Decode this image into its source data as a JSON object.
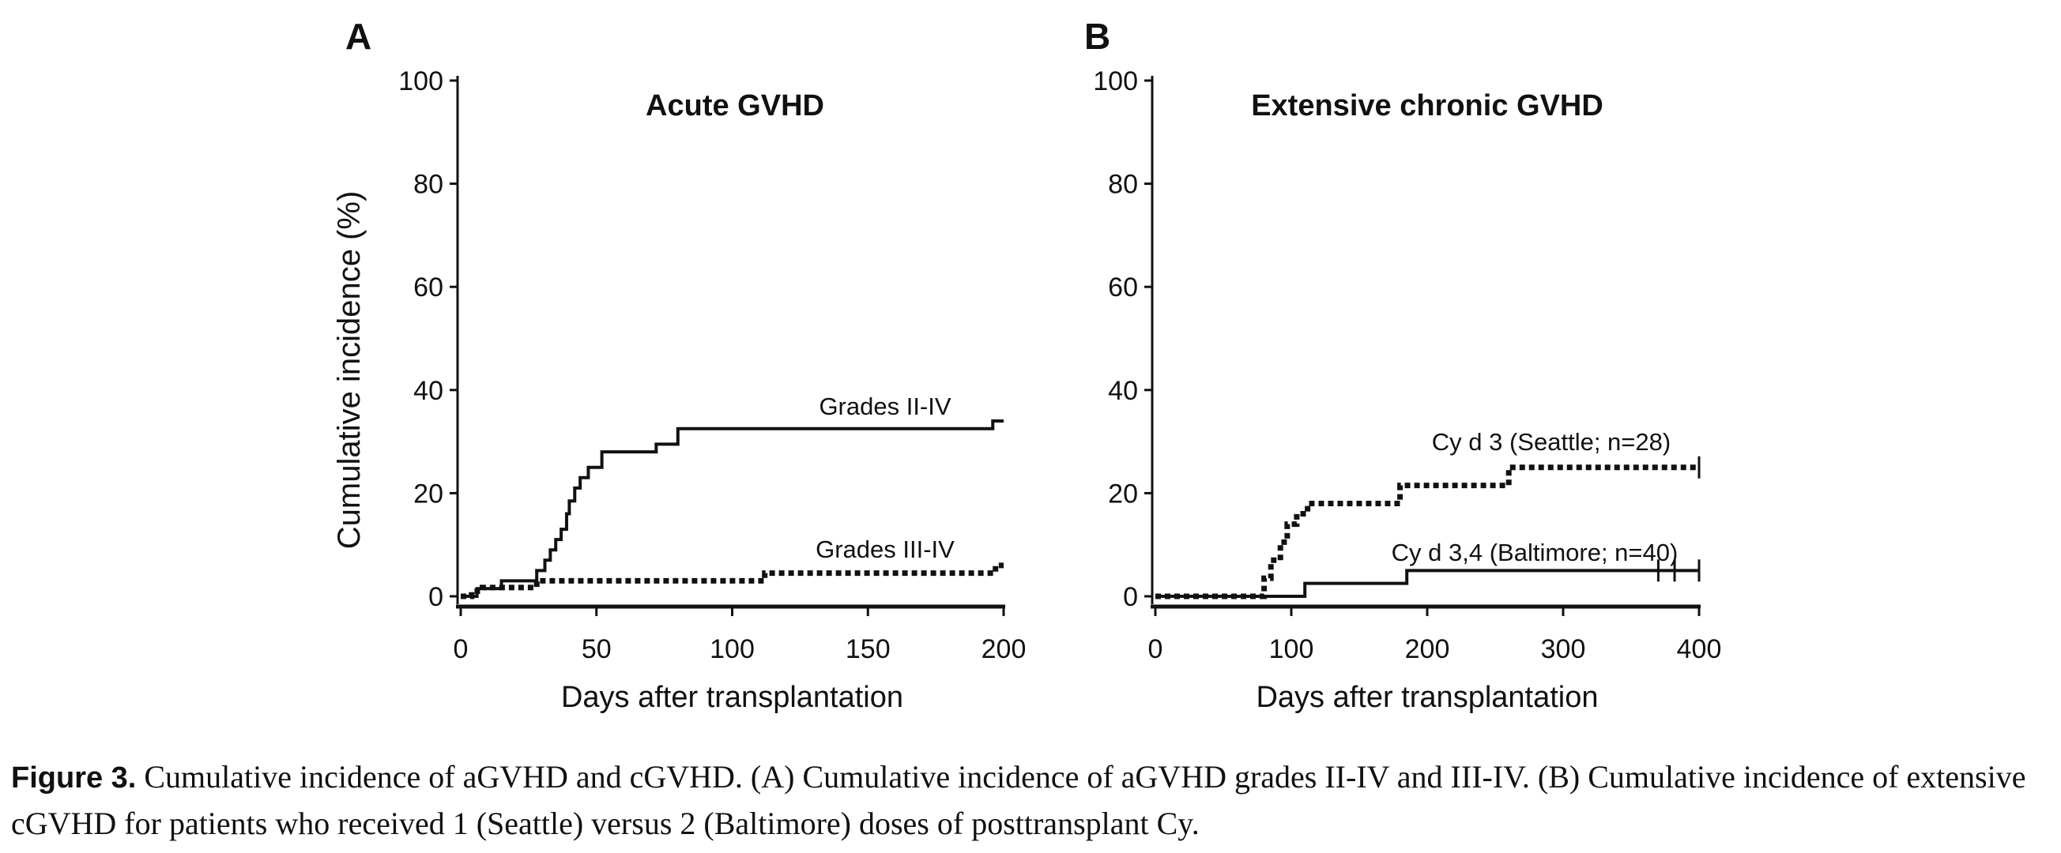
{
  "chart_data": [
    {
      "type": "line",
      "panel_label": "A",
      "title": "Acute GVHD",
      "xlabel": "Days after transplantation",
      "ylabel": "Cumulative incidence (%)",
      "xlim": [
        0,
        200
      ],
      "ylim": [
        0,
        100
      ],
      "x_ticks": [
        "0",
        "50",
        "100",
        "150",
        "200"
      ],
      "y_ticks": [
        "0",
        "20",
        "40",
        "60",
        "80",
        "100"
      ],
      "step": true,
      "series": [
        {
          "name": "Grades II-IV",
          "style": "solid",
          "x": [
            0,
            6,
            15,
            28,
            31,
            33,
            35,
            37,
            39,
            40,
            42,
            44,
            47,
            52,
            55,
            72,
            80,
            196,
            200
          ],
          "y": [
            0,
            1.5,
            3,
            5,
            7,
            9,
            11,
            13,
            16,
            18.5,
            21,
            23,
            25,
            28,
            28,
            29.5,
            32.5,
            34,
            34
          ]
        },
        {
          "name": "Grades III-IV",
          "style": "dotted",
          "x": [
            0,
            4,
            8,
            28,
            112,
            197,
            200
          ],
          "y": [
            0,
            1,
            1.7,
            3,
            4.5,
            6,
            6
          ]
        }
      ]
    },
    {
      "type": "line",
      "panel_label": "B",
      "title": "Extensive chronic GVHD",
      "xlabel": "Days after transplantation",
      "ylabel": "",
      "xlim": [
        0,
        400
      ],
      "ylim": [
        0,
        100
      ],
      "x_ticks": [
        "0",
        "100",
        "200",
        "300",
        "400"
      ],
      "y_ticks": [
        "0",
        "20",
        "40",
        "60",
        "80",
        "100"
      ],
      "step": true,
      "series": [
        {
          "name": "Cy d 3 (Seattle; n=28)",
          "style": "dotted",
          "x": [
            0,
            80,
            85,
            92,
            97,
            104,
            112,
            180,
            260,
            400
          ],
          "y": [
            0,
            3.5,
            7,
            10.5,
            14,
            16,
            18,
            21.5,
            25,
            25
          ],
          "censored_x": [
            400
          ]
        },
        {
          "name": "Cy d 3,4 (Baltimore; n=40)",
          "style": "solid",
          "x": [
            0,
            110,
            185,
            400
          ],
          "y": [
            0,
            2.5,
            5,
            5
          ],
          "censored_x": [
            370,
            382,
            400
          ]
        }
      ]
    }
  ],
  "caption": {
    "label": "Figure 3.",
    "text": "Cumulative incidence of aGVHD and cGVHD. (A) Cumulative incidence of aGVHD grades II-IV and III-IV. (B) Cumulative incidence of extensive cGVHD for patients who received 1 (Seattle) versus 2 (Baltimore) doses of posttransplant Cy."
  }
}
